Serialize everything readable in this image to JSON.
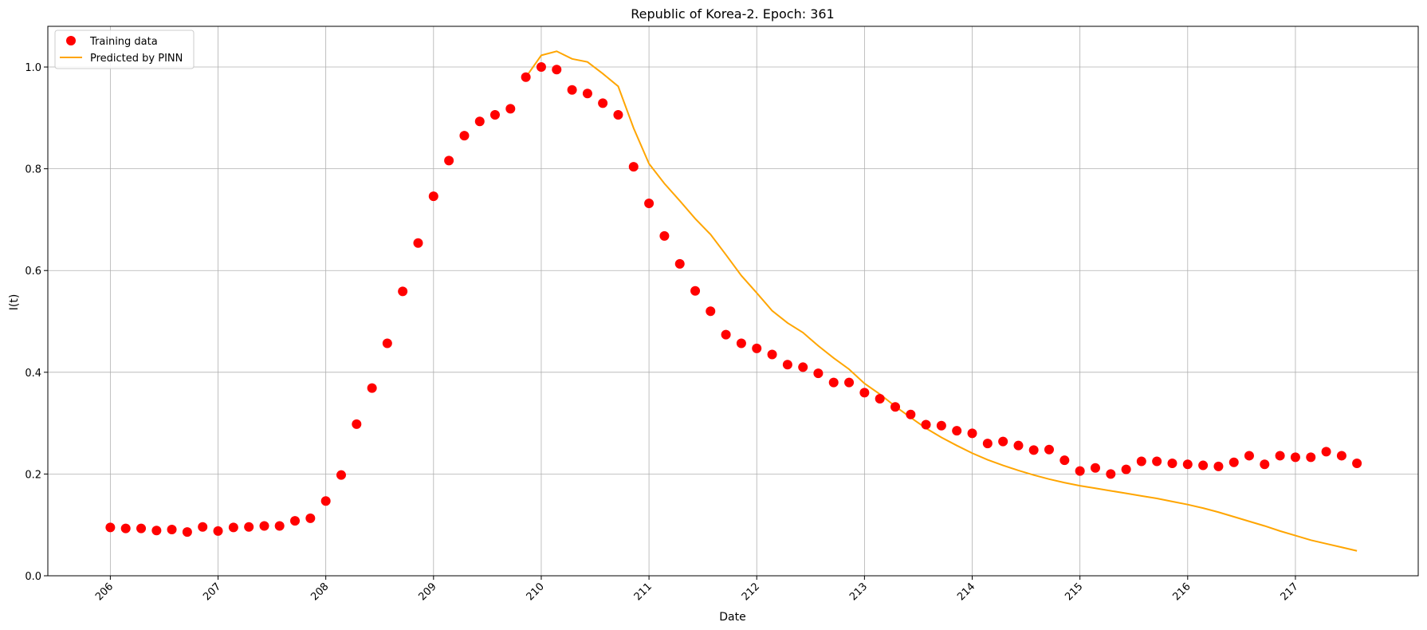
{
  "chart_data": {
    "type": "line",
    "title": "Republic of Korea-2. Epoch: 361",
    "xlabel": "Date",
    "ylabel": "I(t)",
    "x_tick_labels": [
      "206",
      "207",
      "208",
      "209",
      "210",
      "211",
      "212",
      "213",
      "214",
      "215",
      "216",
      "217"
    ],
    "y_tick_labels": [
      "0.0",
      "0.2",
      "0.4",
      "0.6",
      "0.8",
      "1.0"
    ],
    "xlim": [
      205.42,
      218.14
    ],
    "ylim": [
      0.0,
      1.08
    ],
    "grid": true,
    "legend_position": "top-left",
    "series": [
      {
        "name": "Training data",
        "kind": "scatter",
        "color": "#ff0000",
        "x": [
          206.0,
          206.143,
          206.286,
          206.429,
          206.571,
          206.714,
          206.857,
          207.0,
          207.143,
          207.286,
          207.429,
          207.571,
          207.714,
          207.857,
          208.0,
          208.143,
          208.286,
          208.429,
          208.571,
          208.714,
          208.857,
          209.0,
          209.143,
          209.286,
          209.429,
          209.571,
          209.714,
          209.857,
          210.0,
          210.143,
          210.286,
          210.429,
          210.571,
          210.714,
          210.857,
          211.0,
          211.143,
          211.286,
          211.429,
          211.571,
          211.714,
          211.857,
          212.0,
          212.143,
          212.286,
          212.429,
          212.571,
          212.714,
          212.857,
          213.0,
          213.143,
          213.286,
          213.429,
          213.571,
          213.714,
          213.857,
          214.0,
          214.143,
          214.286,
          214.429,
          214.571,
          214.714,
          214.857,
          215.0,
          215.143,
          215.286,
          215.429,
          215.571,
          215.714,
          215.857,
          216.0,
          216.143,
          216.286,
          216.429,
          216.571,
          216.714,
          216.857,
          217.0,
          217.143,
          217.286,
          217.429,
          217.571
        ],
        "y": [
          0.095,
          0.093,
          0.093,
          0.089,
          0.091,
          0.086,
          0.096,
          0.088,
          0.095,
          0.096,
          0.098,
          0.098,
          0.108,
          0.113,
          0.147,
          0.198,
          0.298,
          0.369,
          0.457,
          0.559,
          0.654,
          0.746,
          0.816,
          0.865,
          0.893,
          0.906,
          0.918,
          0.98,
          1.0,
          0.995,
          0.955,
          0.948,
          0.929,
          0.906,
          0.804,
          0.732,
          0.668,
          0.613,
          0.56,
          0.52,
          0.474,
          0.457,
          0.447,
          0.435,
          0.415,
          0.41,
          0.398,
          0.38,
          0.38,
          0.36,
          0.348,
          0.332,
          0.317,
          0.297,
          0.295,
          0.285,
          0.28,
          0.26,
          0.264,
          0.256,
          0.247,
          0.248,
          0.227,
          0.206,
          0.212,
          0.2,
          0.209,
          0.225,
          0.225,
          0.221,
          0.219,
          0.217,
          0.215,
          0.223,
          0.236,
          0.219,
          0.236,
          0.233,
          0.233,
          0.244,
          0.236,
          0.221
        ]
      },
      {
        "name": "Predicted by PINN",
        "kind": "line",
        "color": "#ffa500",
        "x": [
          209.857,
          210.0,
          210.143,
          210.286,
          210.429,
          210.571,
          210.714,
          210.857,
          211.0,
          211.143,
          211.286,
          211.429,
          211.571,
          211.714,
          211.857,
          212.0,
          212.143,
          212.286,
          212.429,
          212.571,
          212.714,
          212.857,
          213.0,
          213.143,
          213.286,
          213.429,
          213.571,
          213.714,
          213.857,
          214.0,
          214.143,
          214.286,
          214.429,
          214.571,
          214.714,
          214.857,
          215.0,
          215.143,
          215.286,
          215.429,
          215.571,
          215.714,
          215.857,
          216.0,
          216.143,
          216.286,
          216.429,
          216.571,
          216.714,
          216.857,
          217.0,
          217.143,
          217.286,
          217.429,
          217.571
        ],
        "y": [
          0.98,
          1.023,
          1.031,
          1.016,
          1.01,
          0.987,
          0.962,
          0.88,
          0.81,
          0.771,
          0.737,
          0.702,
          0.671,
          0.631,
          0.59,
          0.556,
          0.521,
          0.497,
          0.478,
          0.452,
          0.428,
          0.406,
          0.378,
          0.357,
          0.333,
          0.311,
          0.29,
          0.272,
          0.256,
          0.241,
          0.228,
          0.217,
          0.207,
          0.198,
          0.19,
          0.183,
          0.177,
          0.172,
          0.167,
          0.162,
          0.157,
          0.152,
          0.146,
          0.14,
          0.133,
          0.125,
          0.116,
          0.107,
          0.098,
          0.088,
          0.079,
          0.07,
          0.063,
          0.056,
          0.049
        ]
      }
    ]
  }
}
